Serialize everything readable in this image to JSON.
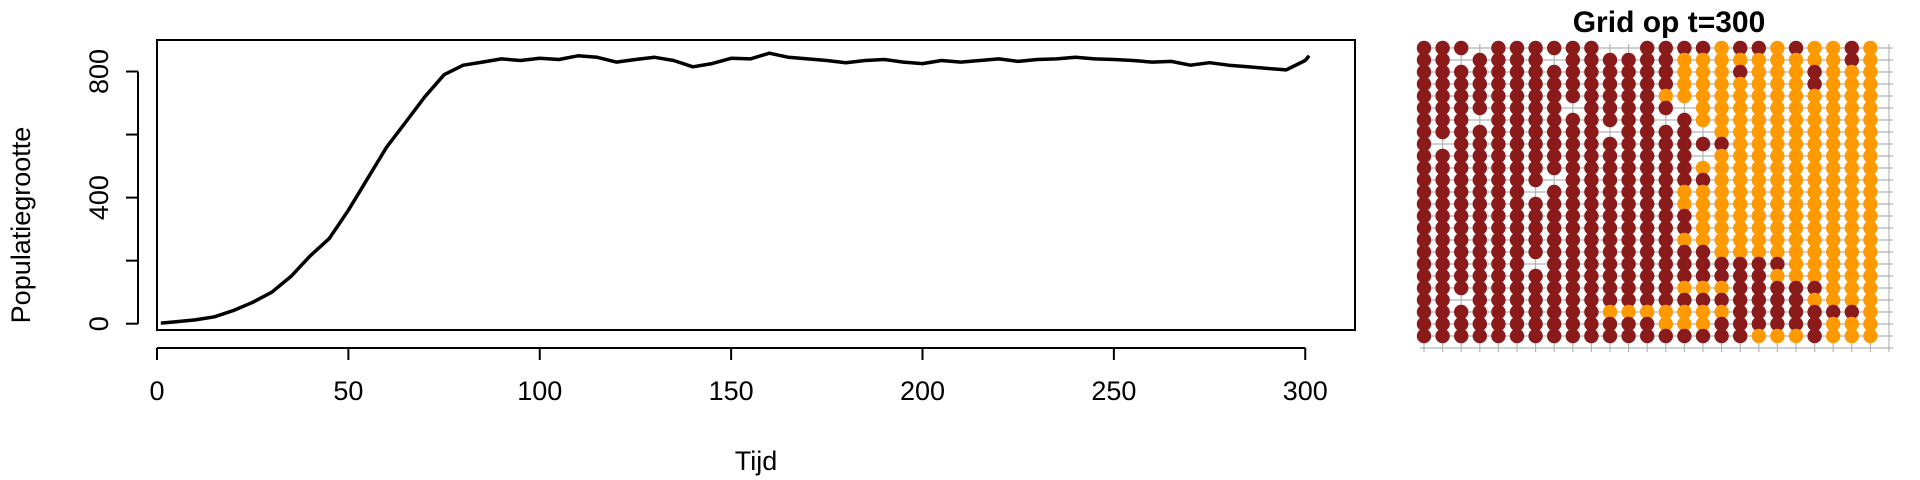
{
  "chart_data": [
    {
      "type": "line",
      "title": "",
      "xlabel": "Tijd",
      "ylabel": "Populatiegrootte",
      "xlim": [
        0,
        313
      ],
      "ylim": [
        -20,
        900
      ],
      "x_ticks": [
        0,
        50,
        100,
        150,
        200,
        250,
        300
      ],
      "y_ticks": [
        0,
        400,
        800
      ],
      "y_minor_ticks": [
        200,
        600
      ],
      "grid": false,
      "series": [
        {
          "color": "#000000",
          "x": [
            1,
            5,
            10,
            15,
            20,
            25,
            30,
            35,
            40,
            45,
            50,
            55,
            60,
            65,
            70,
            75,
            80,
            85,
            90,
            95,
            100,
            105,
            110,
            115,
            120,
            125,
            130,
            135,
            140,
            145,
            150,
            155,
            160,
            165,
            170,
            175,
            180,
            185,
            190,
            195,
            200,
            205,
            210,
            215,
            220,
            225,
            230,
            235,
            240,
            245,
            250,
            255,
            260,
            265,
            270,
            275,
            280,
            285,
            290,
            295,
            300,
            301
          ],
          "y": [
            2,
            6,
            12,
            22,
            42,
            68,
            100,
            150,
            215,
            270,
            360,
            460,
            560,
            640,
            720,
            790,
            820,
            830,
            840,
            835,
            842,
            838,
            850,
            845,
            830,
            838,
            845,
            835,
            815,
            825,
            842,
            840,
            858,
            845,
            840,
            835,
            828,
            835,
            838,
            830,
            825,
            835,
            830,
            835,
            840,
            832,
            838,
            840,
            845,
            840,
            838,
            835,
            830,
            832,
            820,
            828,
            820,
            815,
            810,
            805,
            835,
            850
          ]
        }
      ]
    },
    {
      "type": "heatmap",
      "title": "Grid op t=300",
      "rows": 25,
      "cols": 25,
      "colors": {
        "A": "#8b1a1a",
        "B": "#ff9900",
        "grid": "#b3b3b3"
      },
      "cells": [
        "AAA.AAAAAA..AAAABAABABBAB",
        "AA.AAAA.AAAAAABBBBBBBBBAB",
        "AAAAAAAAAAAAAABBBABBBABBB",
        "AAAAAAAAAAAAAABBBBBBBABBB",
        "AAAAAAAAAAAAABBBBBBBBBBBB",
        "AAAAAAAA.AAAAA.BBBBBBBBBB",
        "AAA.AAAAAAAAA.ABBBBBBBBBB",
        "AAAAAAAAAA.AAAA.BBBBBBBBB",
        "A.AAAAAAAAAAAAAAABBBBBBBB",
        "AAAAAAAAAAAAAAA.BBBBBBBBB",
        "AAAAAAAAAAAAAAABBBBBBBBBB",
        "AAAAAAA.AAAAAAAABBBBBBBBB",
        "AAAAAA.AAAAAAABBBBBBBBBBB",
        "AAAAAAAAAAAAAABBBBBBBBBBB",
        "AAAAAAAAAAAAAAABBBBBBBBBB",
        "AAAAAAAAAAAAAAABBBBBBBBBB",
        "AAAAAAAAAAAAAABBBBBBBBBBB",
        "AAAAAAAAAAAAAAAABBBBBBBBB",
        "AAAAAA.AAAAAAAAAAAAABBBBB",
        "AAAAAAAAAAAAAAAAAAABBBBBB",
        "AAAAAAAAAAAAAABBBAAAAABBB",
        "AA.AAAAAAAAAAAAAAAAAABBBB",
        "AAAAAAAAAABBBBBBBAAAAAAAB",
        "AAAAAAAAAAAAABBBAAAAAABBB",
        "AAAAAAAAAAAAAAAAAABBBABBB"
      ]
    }
  ]
}
